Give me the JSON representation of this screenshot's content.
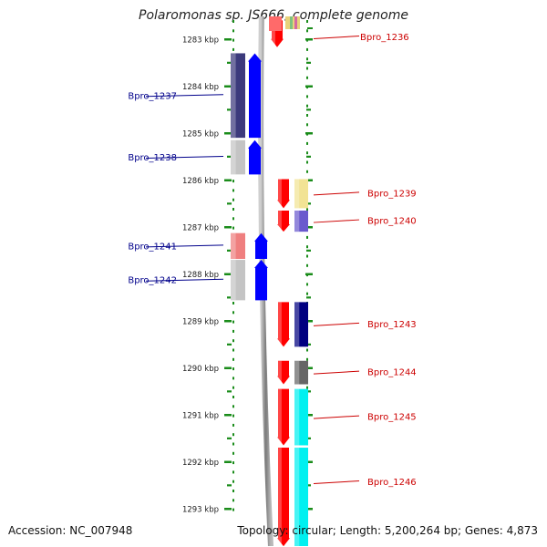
{
  "title": "Polaromonas sp. JS666, complete genome",
  "footer": {
    "accession": "Accession: NC_007948",
    "summary": "Topology: circular; Length: 5,200,264 bp; Genes: 4,873"
  },
  "ruler": {
    "labels": [
      "1283 kbp",
      "1284 kbp",
      "1285 kbp",
      "1286 kbp",
      "1287 kbp",
      "1288 kbp",
      "1289 kbp",
      "1290 kbp",
      "1291 kbp",
      "1292 kbp",
      "1293 kbp"
    ],
    "start_kbp": 1283,
    "step_kbp": 1
  },
  "colors": {
    "ruler": "#1a8c1a",
    "backbone": "#8a8a8a",
    "left_label": "#00008b",
    "right_label": "#cc0000"
  },
  "left_genes": [
    {
      "label": "Bpro_1237",
      "start_kbp": 1283.3,
      "end_kbp": 1285.1,
      "track_color": "#3c3a7c",
      "arrow_color": "#0000ff"
    },
    {
      "label": "Bpro_1238",
      "start_kbp": 1285.15,
      "end_kbp": 1285.88,
      "track_color": "#c4c4c4",
      "arrow_color": "#0000ff"
    },
    {
      "label": "Bpro_1241",
      "start_kbp": 1287.13,
      "end_kbp": 1287.68,
      "track_color": "#ef7f7f",
      "arrow_color": "#0000ff"
    },
    {
      "label": "Bpro_1242",
      "start_kbp": 1287.7,
      "end_kbp": 1288.56,
      "track_color": "#c4c4c4",
      "arrow_color": "#0000ff"
    }
  ],
  "right_genes": [
    {
      "label": "Bpro_1236",
      "start_kbp": 1282.6,
      "end_kbp": 1283.17,
      "arrow_color": "#ff0000",
      "track_color": "#ff0000"
    },
    {
      "label": "Bpro_1239",
      "start_kbp": 1285.98,
      "end_kbp": 1286.6,
      "arrow_color": "#ff0000",
      "track_color": "#f2e394"
    },
    {
      "label": "Bpro_1240",
      "start_kbp": 1286.65,
      "end_kbp": 1287.1,
      "arrow_color": "#ff0000",
      "track_color": "#6a5acd"
    },
    {
      "label": "Bpro_1243",
      "start_kbp": 1288.6,
      "end_kbp": 1289.55,
      "arrow_color": "#ff0000",
      "track_color": "#000080"
    },
    {
      "label": "Bpro_1244",
      "start_kbp": 1289.85,
      "end_kbp": 1290.35,
      "arrow_color": "#ff0000",
      "track_color": "#666666"
    },
    {
      "label": "Bpro_1245",
      "start_kbp": 1290.45,
      "end_kbp": 1291.65,
      "arrow_color": "#ff0000",
      "track_color": "#00f0f0"
    },
    {
      "label": "Bpro_1246",
      "start_kbp": 1291.7,
      "end_kbp": 1293.8,
      "arrow_color": "#ff0000",
      "track_color": "#00f0f0"
    }
  ]
}
